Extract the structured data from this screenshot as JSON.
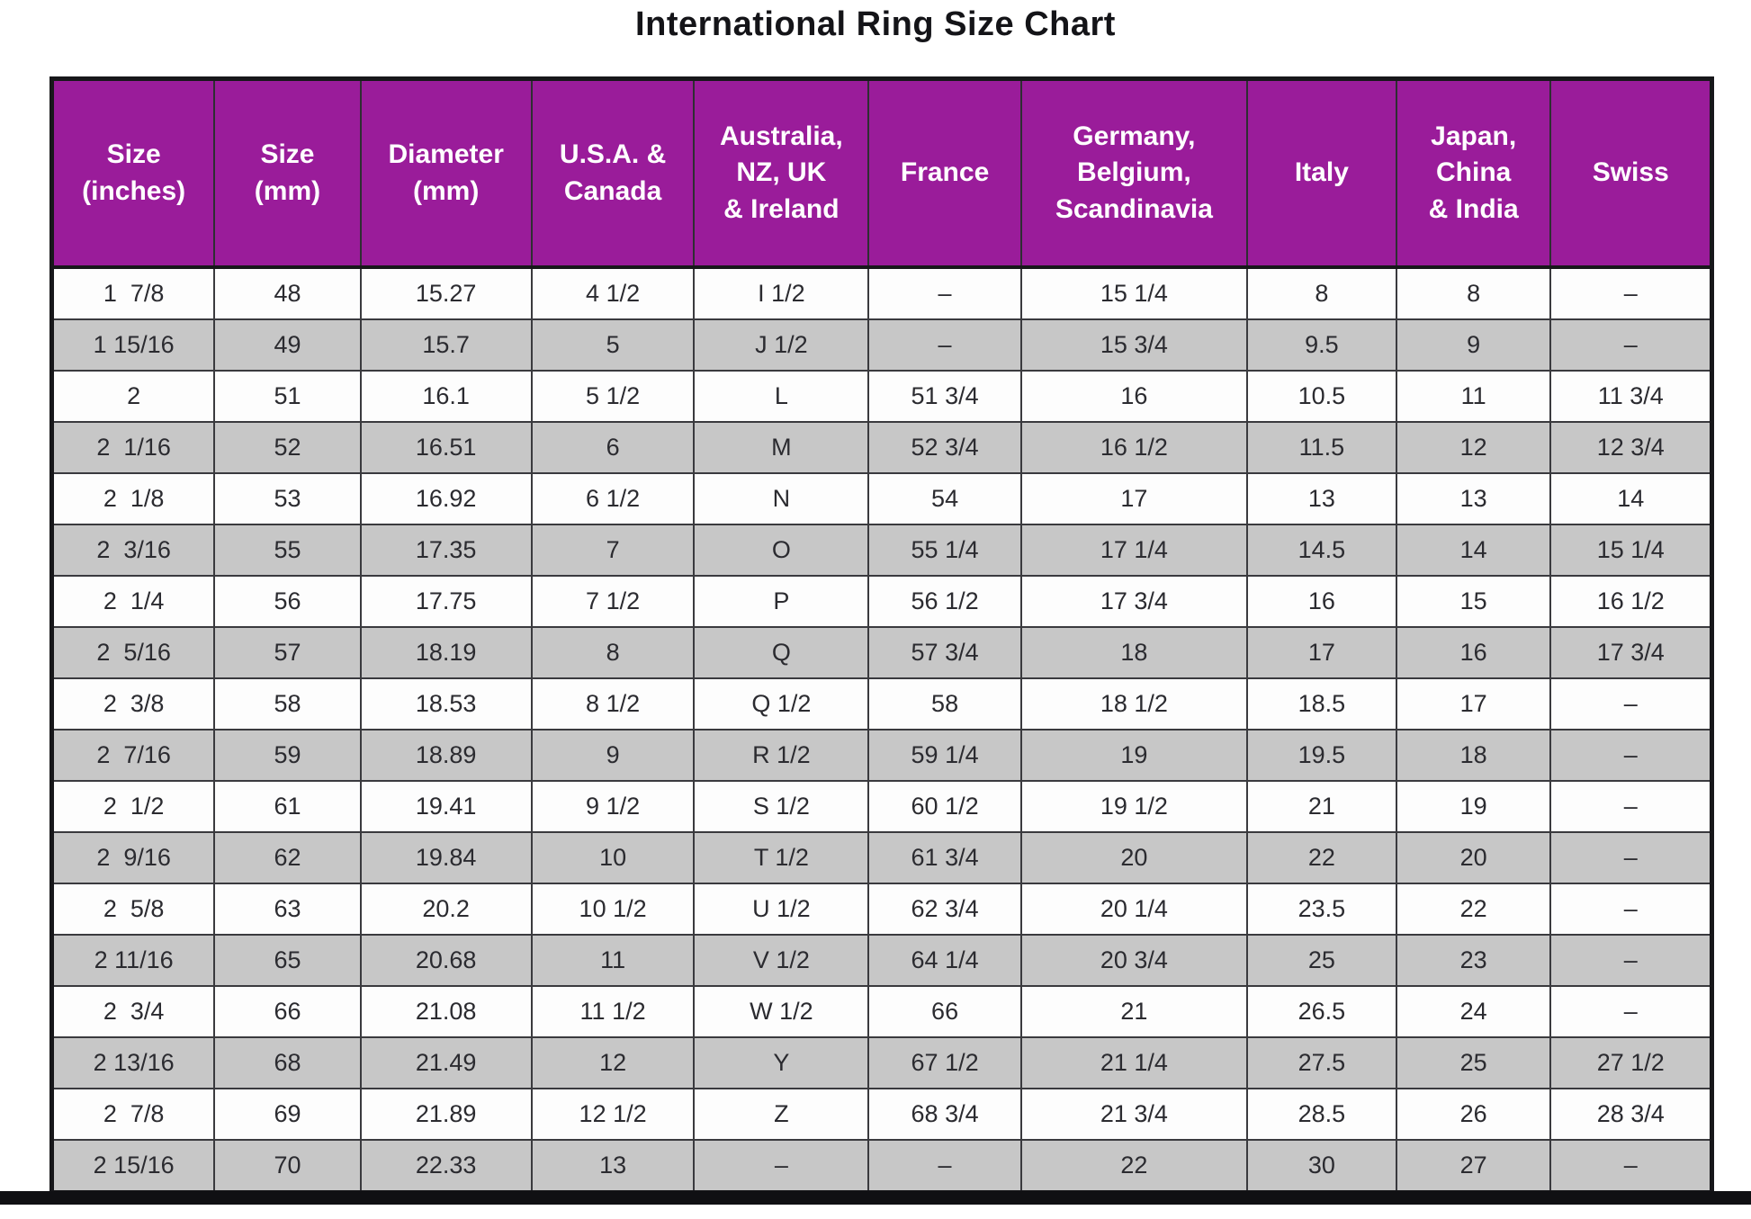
{
  "title": "International Ring Size Chart",
  "colors": {
    "header_bg": "#9A1C9A",
    "header_text": "#FFFFFF",
    "row_bg": "#FDFDFD",
    "row_alt_bg": "#C7C7C7",
    "border": "#17171A",
    "cell_text": "#2B2B30"
  },
  "chart_data": {
    "type": "table",
    "title": "International Ring Size Chart",
    "columns": [
      "Size\n(inches)",
      "Size\n(mm)",
      "Diameter\n(mm)",
      "U.S.A. &\nCanada",
      "Australia,\nNZ, UK\n& Ireland",
      "France",
      "Germany,\nBelgium,\nScandinavia",
      "Italy",
      "Japan,\nChina\n& India",
      "Swiss"
    ],
    "rows": [
      [
        "1  7/8",
        "48",
        "15.27",
        "4 1/2",
        "I 1/2",
        "–",
        "15 1/4",
        "8",
        "8",
        "–"
      ],
      [
        "1 15/16",
        "49",
        "15.7",
        "5",
        "J 1/2",
        "–",
        "15 3/4",
        "9.5",
        "9",
        "–"
      ],
      [
        "2",
        "51",
        "16.1",
        "5 1/2",
        "L",
        "51 3/4",
        "16",
        "10.5",
        "11",
        "11 3/4"
      ],
      [
        "2  1/16",
        "52",
        "16.51",
        "6",
        "M",
        "52 3/4",
        "16 1/2",
        "11.5",
        "12",
        "12 3/4"
      ],
      [
        "2  1/8",
        "53",
        "16.92",
        "6 1/2",
        "N",
        "54",
        "17",
        "13",
        "13",
        "14"
      ],
      [
        "2  3/16",
        "55",
        "17.35",
        "7",
        "O",
        "55 1/4",
        "17 1/4",
        "14.5",
        "14",
        "15 1/4"
      ],
      [
        "2  1/4",
        "56",
        "17.75",
        "7 1/2",
        "P",
        "56 1/2",
        "17 3/4",
        "16",
        "15",
        "16 1/2"
      ],
      [
        "2  5/16",
        "57",
        "18.19",
        "8",
        "Q",
        "57 3/4",
        "18",
        "17",
        "16",
        "17 3/4"
      ],
      [
        "2  3/8",
        "58",
        "18.53",
        "8 1/2",
        "Q 1/2",
        "58",
        "18 1/2",
        "18.5",
        "17",
        "–"
      ],
      [
        "2  7/16",
        "59",
        "18.89",
        "9",
        "R 1/2",
        "59 1/4",
        "19",
        "19.5",
        "18",
        "–"
      ],
      [
        "2  1/2",
        "61",
        "19.41",
        "9 1/2",
        "S 1/2",
        "60 1/2",
        "19 1/2",
        "21",
        "19",
        "–"
      ],
      [
        "2  9/16",
        "62",
        "19.84",
        "10",
        "T 1/2",
        "61 3/4",
        "20",
        "22",
        "20",
        "–"
      ],
      [
        "2  5/8",
        "63",
        "20.2",
        "10 1/2",
        "U 1/2",
        "62 3/4",
        "20 1/4",
        "23.5",
        "22",
        "–"
      ],
      [
        "2 11/16",
        "65",
        "20.68",
        "11",
        "V 1/2",
        "64 1/4",
        "20 3/4",
        "25",
        "23",
        "–"
      ],
      [
        "2  3/4",
        "66",
        "21.08",
        "11 1/2",
        "W 1/2",
        "66",
        "21",
        "26.5",
        "24",
        "–"
      ],
      [
        "2 13/16",
        "68",
        "21.49",
        "12",
        "Y",
        "67 1/2",
        "21 1/4",
        "27.5",
        "25",
        "27 1/2"
      ],
      [
        "2  7/8",
        "69",
        "21.89",
        "12 1/2",
        "Z",
        "68 3/4",
        "21 3/4",
        "28.5",
        "26",
        "28 3/4"
      ],
      [
        "2 15/16",
        "70",
        "22.33",
        "13",
        "–",
        "–",
        "22",
        "30",
        "27",
        "–"
      ]
    ]
  }
}
